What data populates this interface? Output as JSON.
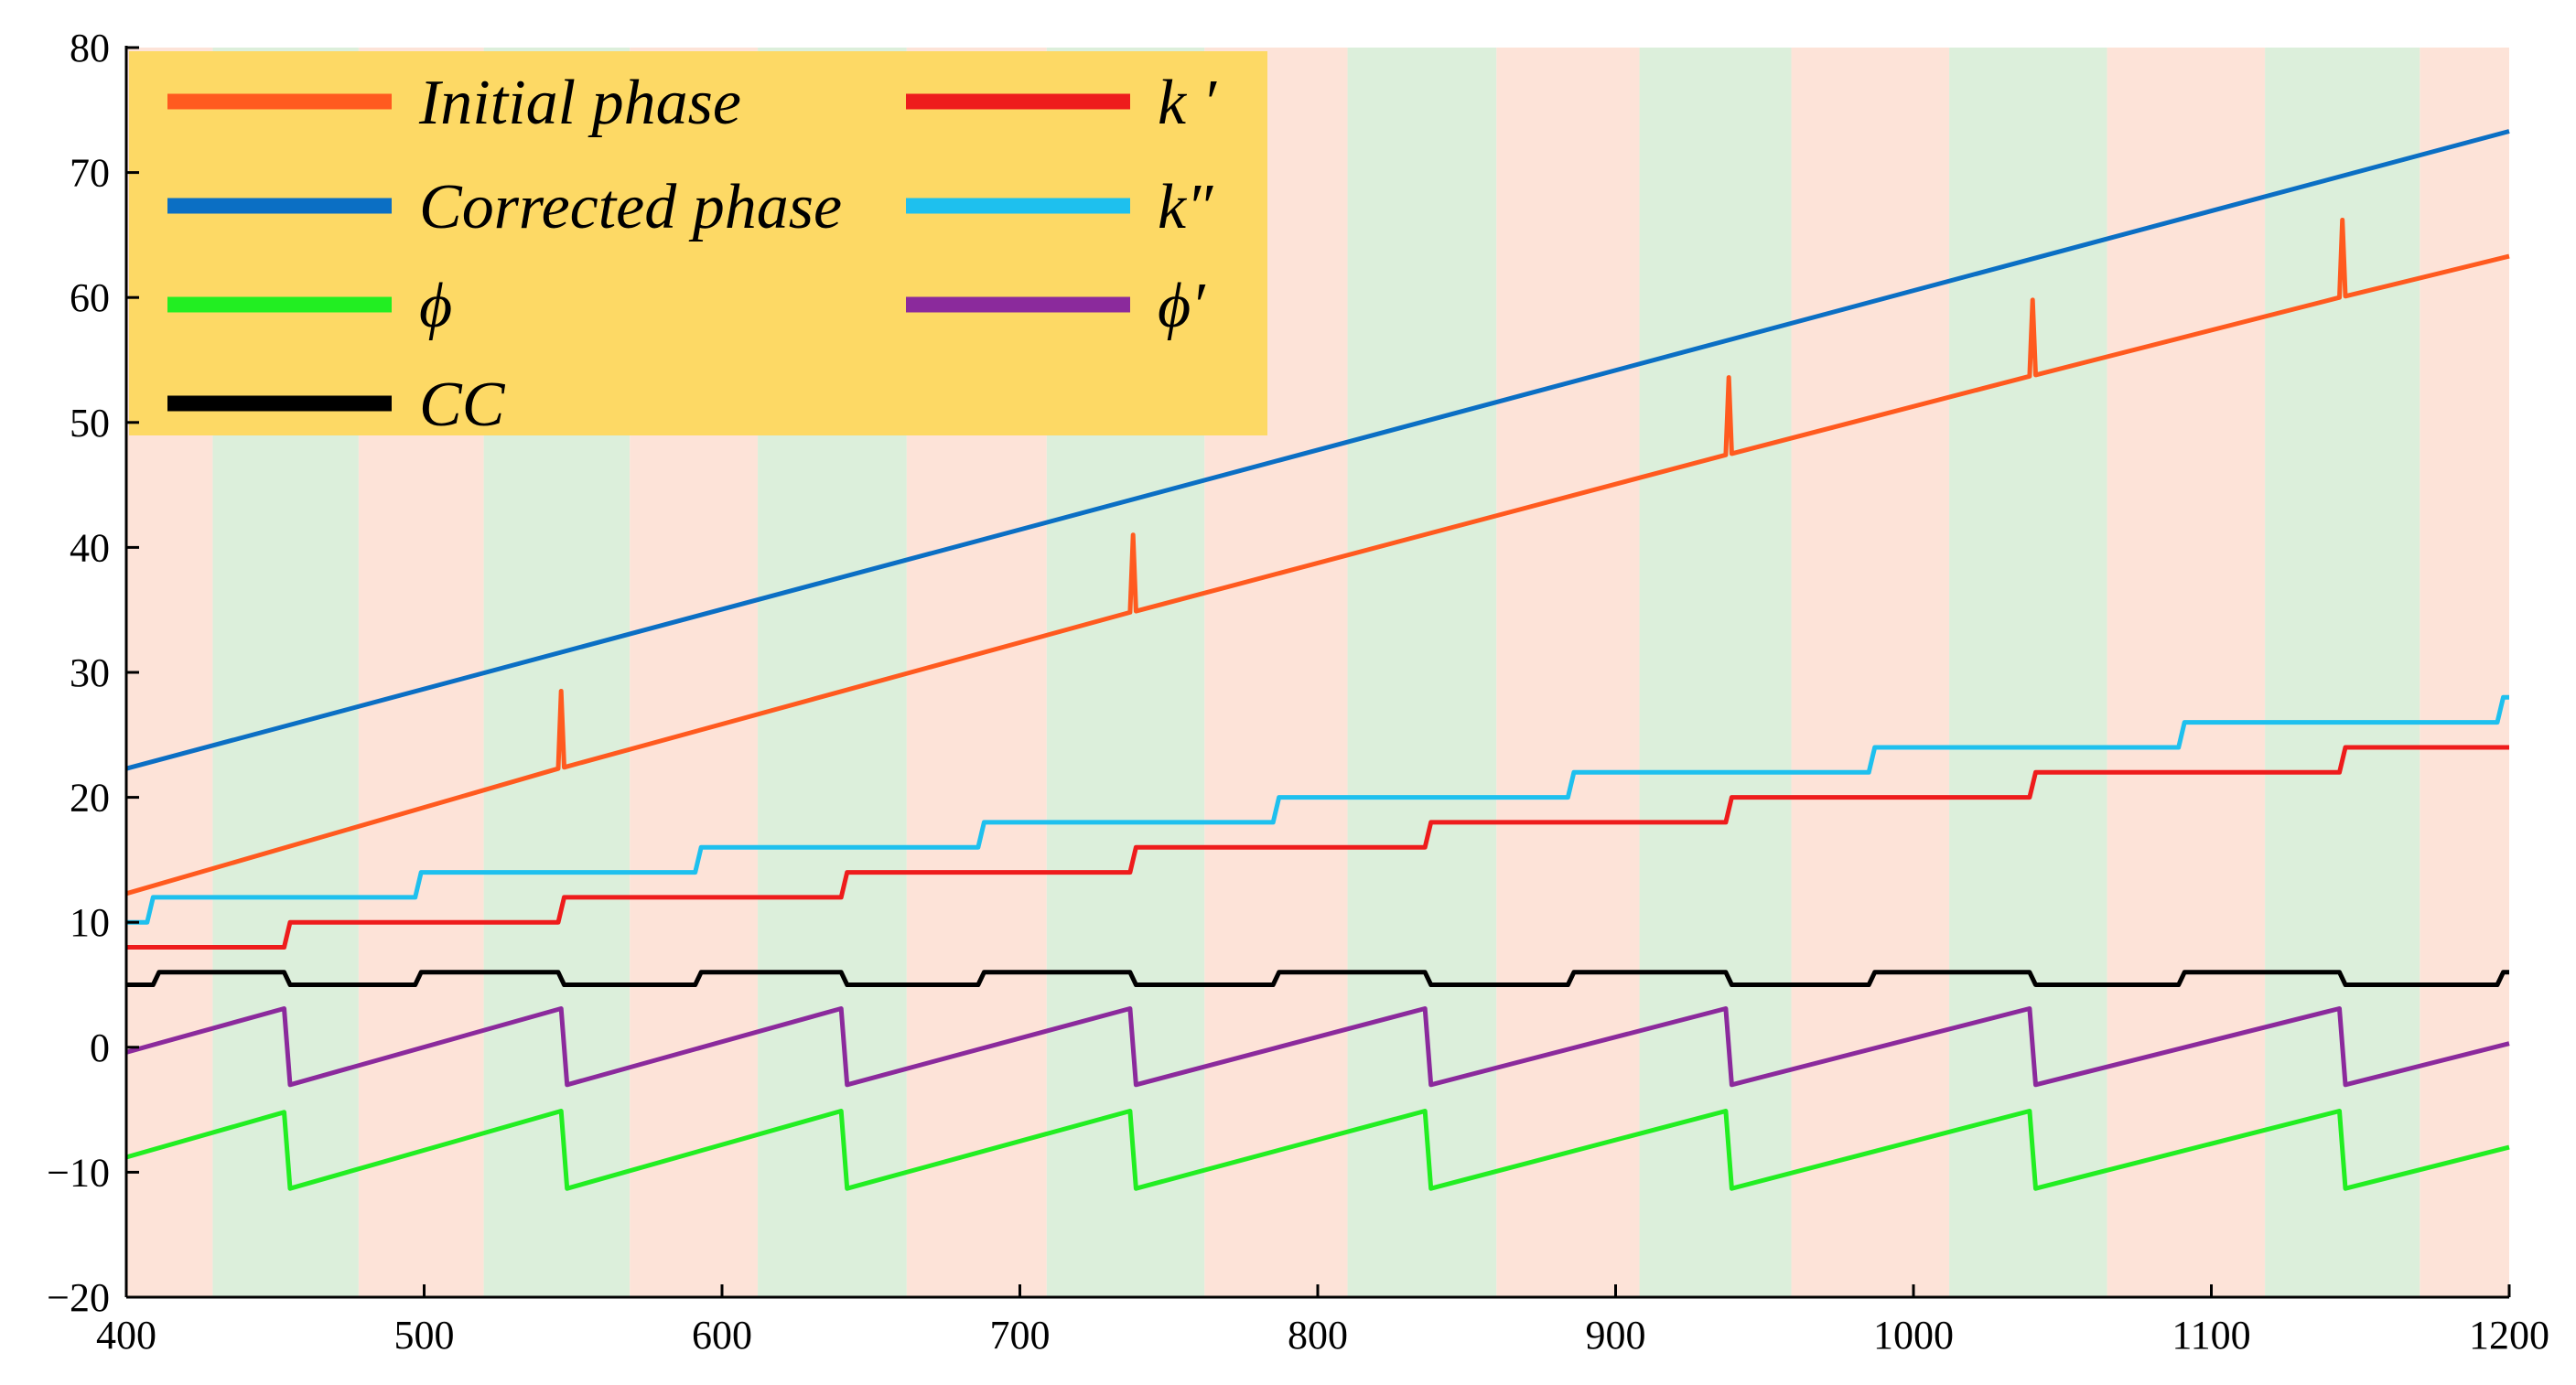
{
  "chart_data": {
    "type": "line",
    "title": "",
    "xlabel": "",
    "ylabel": "",
    "xlim": [
      400,
      1200
    ],
    "ylim": [
      -20,
      80
    ],
    "x_ticks": [
      400,
      500,
      600,
      700,
      800,
      900,
      1000,
      1100,
      1200
    ],
    "y_ticks": [
      -20,
      -10,
      0,
      10,
      20,
      30,
      40,
      50,
      60,
      70,
      80
    ],
    "x_tick_labels": [
      "400",
      "500",
      "600",
      "700",
      "800",
      "900",
      "1000",
      "1100",
      "1200"
    ],
    "y_tick_labels": [
      "−20",
      "−10",
      "0",
      "10",
      "20",
      "30",
      "40",
      "50",
      "60",
      "70",
      "80"
    ],
    "legend_position": "top-left",
    "background_bands": [
      {
        "x0": 400,
        "x1": 429,
        "color": "#fde3d8"
      },
      {
        "x0": 429,
        "x1": 478,
        "color": "#dcefdb"
      },
      {
        "x0": 478,
        "x1": 520,
        "color": "#fde3d8"
      },
      {
        "x0": 520,
        "x1": 569,
        "color": "#dcefdb"
      },
      {
        "x0": 569,
        "x1": 612,
        "color": "#fde3d8"
      },
      {
        "x0": 612,
        "x1": 662,
        "color": "#dcefdb"
      },
      {
        "x0": 662,
        "x1": 709,
        "color": "#fde3d8"
      },
      {
        "x0": 709,
        "x1": 762,
        "color": "#dcefdb"
      },
      {
        "x0": 762,
        "x1": 810,
        "color": "#fde3d8"
      },
      {
        "x0": 810,
        "x1": 860,
        "color": "#dcefdb"
      },
      {
        "x0": 860,
        "x1": 908,
        "color": "#fde3d8"
      },
      {
        "x0": 908,
        "x1": 959,
        "color": "#dcefdb"
      },
      {
        "x0": 959,
        "x1": 1012,
        "color": "#fde3d8"
      },
      {
        "x0": 1012,
        "x1": 1065,
        "color": "#dcefdb"
      },
      {
        "x0": 1065,
        "x1": 1118,
        "color": "#fde3d8"
      },
      {
        "x0": 1118,
        "x1": 1170,
        "color": "#dcefdb"
      },
      {
        "x0": 1170,
        "x1": 1200,
        "color": "#fde3d8"
      }
    ],
    "series": [
      {
        "name": "Initial phase",
        "key": "initial_phase",
        "color": "#ff5a1f",
        "points": [
          [
            400,
            12.3
          ],
          [
            545,
            22.3
          ],
          [
            546,
            28.5
          ],
          [
            547,
            22.4
          ],
          [
            737,
            34.8
          ],
          [
            738,
            41.0
          ],
          [
            739,
            34.9
          ],
          [
            937,
            47.4
          ],
          [
            938,
            53.6
          ],
          [
            939,
            47.5
          ],
          [
            1039,
            53.7
          ],
          [
            1040,
            59.8
          ],
          [
            1041,
            53.8
          ],
          [
            1143,
            60.0
          ],
          [
            1144,
            66.2
          ],
          [
            1145,
            60.1
          ],
          [
            1200,
            63.3
          ]
        ]
      },
      {
        "name": "Corrected phase",
        "key": "corrected_phase",
        "color": "#0b6fc4",
        "points": [
          [
            400,
            22.3
          ],
          [
            1200,
            73.3
          ]
        ]
      },
      {
        "name": "ϕ",
        "key": "phi",
        "color": "#22ee22",
        "points": [
          [
            400,
            -8.8
          ],
          [
            453,
            -5.2
          ],
          [
            455,
            -11.3
          ],
          [
            546,
            -5.1
          ],
          [
            548,
            -11.3
          ],
          [
            640,
            -5.1
          ],
          [
            642,
            -11.3
          ],
          [
            737,
            -5.1
          ],
          [
            739,
            -11.3
          ],
          [
            836,
            -5.1
          ],
          [
            838,
            -11.3
          ],
          [
            937,
            -5.1
          ],
          [
            939,
            -11.3
          ],
          [
            1039,
            -5.1
          ],
          [
            1041,
            -11.3
          ],
          [
            1143,
            -5.1
          ],
          [
            1145,
            -11.3
          ],
          [
            1200,
            -8.0
          ]
        ]
      },
      {
        "name": "CC",
        "key": "cc",
        "color": "#000000",
        "points": [
          [
            400,
            5
          ],
          [
            409,
            5
          ],
          [
            411,
            6
          ],
          [
            453,
            6
          ],
          [
            455,
            5
          ],
          [
            497,
            5
          ],
          [
            499,
            6
          ],
          [
            545,
            6
          ],
          [
            547,
            5
          ],
          [
            591,
            5
          ],
          [
            593,
            6
          ],
          [
            640,
            6
          ],
          [
            642,
            5
          ],
          [
            686,
            5
          ],
          [
            688,
            6
          ],
          [
            737,
            6
          ],
          [
            739,
            5
          ],
          [
            785,
            5
          ],
          [
            787,
            6
          ],
          [
            836,
            6
          ],
          [
            838,
            5
          ],
          [
            884,
            5
          ],
          [
            886,
            6
          ],
          [
            937,
            6
          ],
          [
            939,
            5
          ],
          [
            985,
            5
          ],
          [
            987,
            6
          ],
          [
            1039,
            6
          ],
          [
            1041,
            5
          ],
          [
            1089,
            5
          ],
          [
            1091,
            6
          ],
          [
            1143,
            6
          ],
          [
            1145,
            5
          ],
          [
            1196,
            5
          ],
          [
            1198,
            6
          ],
          [
            1200,
            6
          ]
        ]
      },
      {
        "name": "k′",
        "key": "k_prime",
        "color": "#ee1c1c",
        "points": [
          [
            400,
            8
          ],
          [
            453,
            8
          ],
          [
            455,
            10
          ],
          [
            545,
            10
          ],
          [
            547,
            12
          ],
          [
            640,
            12
          ],
          [
            642,
            14
          ],
          [
            737,
            14
          ],
          [
            739,
            16
          ],
          [
            836,
            16
          ],
          [
            838,
            18
          ],
          [
            937,
            18
          ],
          [
            939,
            20
          ],
          [
            1039,
            20
          ],
          [
            1041,
            22
          ],
          [
            1143,
            22
          ],
          [
            1145,
            24
          ],
          [
            1200,
            24
          ]
        ]
      },
      {
        "name": "k″",
        "key": "k_double_prime",
        "color": "#1ec0ee",
        "points": [
          [
            400,
            10
          ],
          [
            407,
            10
          ],
          [
            409,
            12
          ],
          [
            497,
            12
          ],
          [
            499,
            14
          ],
          [
            591,
            14
          ],
          [
            593,
            16
          ],
          [
            686,
            16
          ],
          [
            688,
            18
          ],
          [
            785,
            18
          ],
          [
            787,
            20
          ],
          [
            884,
            20
          ],
          [
            886,
            22
          ],
          [
            985,
            22
          ],
          [
            987,
            24
          ],
          [
            1089,
            24
          ],
          [
            1091,
            26
          ],
          [
            1196,
            26
          ],
          [
            1198,
            28
          ],
          [
            1200,
            28
          ]
        ]
      },
      {
        "name": "ϕ′",
        "key": "phi_prime",
        "color": "#8b2a9c",
        "points": [
          [
            400,
            -0.4
          ],
          [
            453,
            3.1
          ],
          [
            455,
            -3.0
          ],
          [
            546,
            3.1
          ],
          [
            548,
            -3.0
          ],
          [
            640,
            3.1
          ],
          [
            642,
            -3.0
          ],
          [
            737,
            3.1
          ],
          [
            739,
            -3.0
          ],
          [
            836,
            3.1
          ],
          [
            838,
            -3.0
          ],
          [
            937,
            3.1
          ],
          [
            939,
            -3.0
          ],
          [
            1039,
            3.1
          ],
          [
            1041,
            -3.0
          ],
          [
            1143,
            3.1
          ],
          [
            1145,
            -3.0
          ],
          [
            1200,
            0.3
          ]
        ]
      }
    ],
    "legend": {
      "background": "#fdd965",
      "entries": [
        {
          "key": "initial_phase",
          "label": "Initial phase",
          "color": "#ff5a1f"
        },
        {
          "key": "corrected_phase",
          "label": "Corrected phase",
          "color": "#0b6fc4"
        },
        {
          "key": "phi",
          "label": "ϕ",
          "color": "#22ee22"
        },
        {
          "key": "cc",
          "label": "CC",
          "color": "#000000"
        },
        {
          "key": "k_prime",
          "label": "k ′",
          "color": "#ee1c1c"
        },
        {
          "key": "k_double_prime",
          "label": "k″",
          "color": "#1ec0ee"
        },
        {
          "key": "phi_prime",
          "label": "ϕ′",
          "color": "#8b2a9c"
        }
      ]
    }
  }
}
